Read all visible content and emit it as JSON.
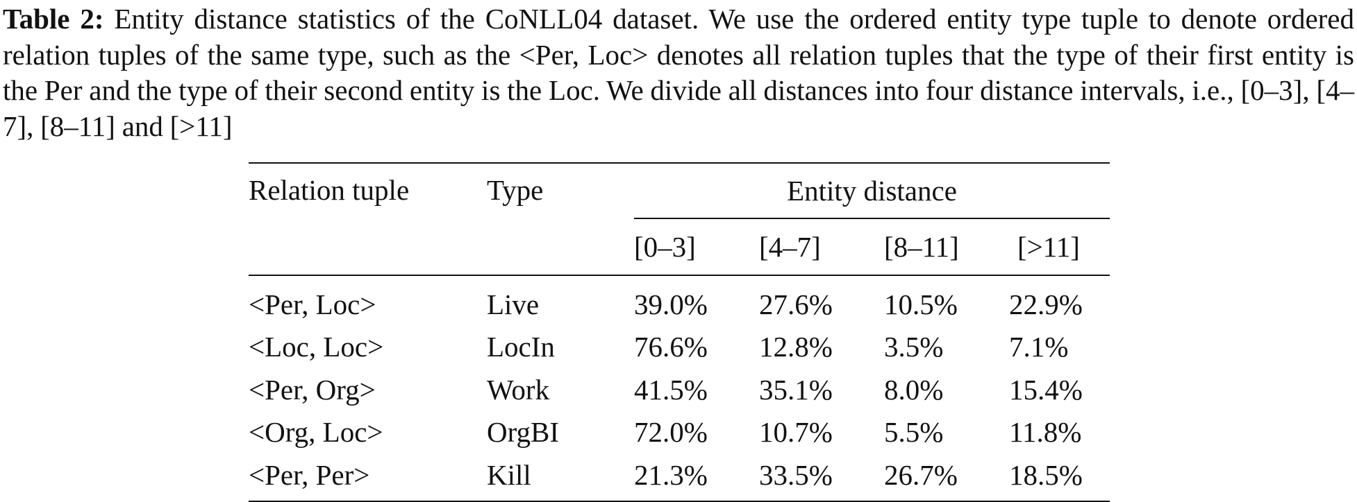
{
  "caption": {
    "label": "Table 2:",
    "text": "Entity distance statistics of the CoNLL04 dataset. We use the ordered entity type tuple to denote ordered relation tuples of the same type, such as the <Per, Loc> denotes all relation tuples that the type of their first entity is the Per and the type of their second entity is the Loc. We divide all distances into four distance intervals, i.e., [0–3], [4–7], [8–11] and [>11]"
  },
  "table": {
    "header": {
      "relation_tuple": "Relation tuple",
      "type": "Type",
      "group": "Entity distance",
      "intervals": [
        "[0–3]",
        "[4–7]",
        "[8–11]",
        "[>11]"
      ]
    },
    "rows": [
      {
        "tuple": "<Per, Loc>",
        "type": "Live",
        "values": [
          "39.0%",
          "27.6%",
          "10.5%",
          "22.9%"
        ]
      },
      {
        "tuple": "<Loc, Loc>",
        "type": "LocIn",
        "values": [
          "76.6%",
          "12.8%",
          "3.5%",
          "7.1%"
        ]
      },
      {
        "tuple": "<Per, Org>",
        "type": "Work",
        "values": [
          "41.5%",
          "35.1%",
          "8.0%",
          "15.4%"
        ]
      },
      {
        "tuple": "<Org, Loc>",
        "type": "OrgBI",
        "values": [
          "72.0%",
          "10.7%",
          "5.5%",
          "11.8%"
        ]
      },
      {
        "tuple": "<Per, Per>",
        "type": "Kill",
        "values": [
          "21.3%",
          "33.5%",
          "26.7%",
          "18.5%"
        ]
      }
    ]
  }
}
